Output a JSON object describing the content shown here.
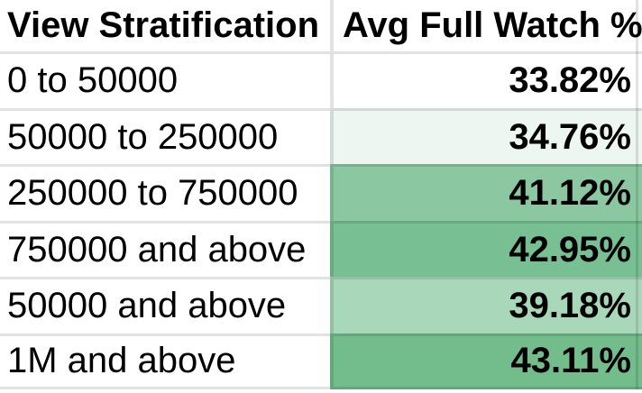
{
  "table": {
    "columns": [
      {
        "label": "View Stratification"
      },
      {
        "label": "Avg Full Watch %"
      }
    ],
    "rows": [
      {
        "label": "0 to 50000",
        "value": "33.82%",
        "value_bg": "#ffffff"
      },
      {
        "label": "50000 to 250000",
        "value": "34.76%",
        "value_bg": "#edf6f0"
      },
      {
        "label": "250000 to 750000",
        "value": "41.12%",
        "value_bg": "#8bc7a1"
      },
      {
        "label": "750000 and above",
        "value": "42.95%",
        "value_bg": "#78c093"
      },
      {
        "label": "50000 and above",
        "value": "39.18%",
        "value_bg": "#a9d7ba"
      },
      {
        "label": "1M and above",
        "value": "43.11%",
        "value_bg": "#73bd8d"
      }
    ],
    "colors": {
      "gridline": "#e2e2e2",
      "text": "#000000",
      "header_bg": "#ffffff",
      "label_col_bg": "#ffffff"
    }
  },
  "chart_data": {
    "type": "table",
    "columns": [
      "View Stratification",
      "Avg Full Watch %"
    ],
    "categories": [
      "0 to 50000",
      "50000 to 250000",
      "250000 to 750000",
      "750000 and above",
      "50000 and above",
      "1M and above"
    ],
    "values": [
      33.82,
      34.76,
      41.12,
      42.95,
      39.18,
      43.11
    ],
    "value_format": "percent",
    "title": "",
    "legend": "none",
    "conditional_formatting": {
      "target": "Avg Full Watch % column",
      "style": "color-scale",
      "min_value": 33.82,
      "min_color": "#ffffff",
      "max_value": 43.11,
      "max_color": "#57bb8a"
    }
  }
}
